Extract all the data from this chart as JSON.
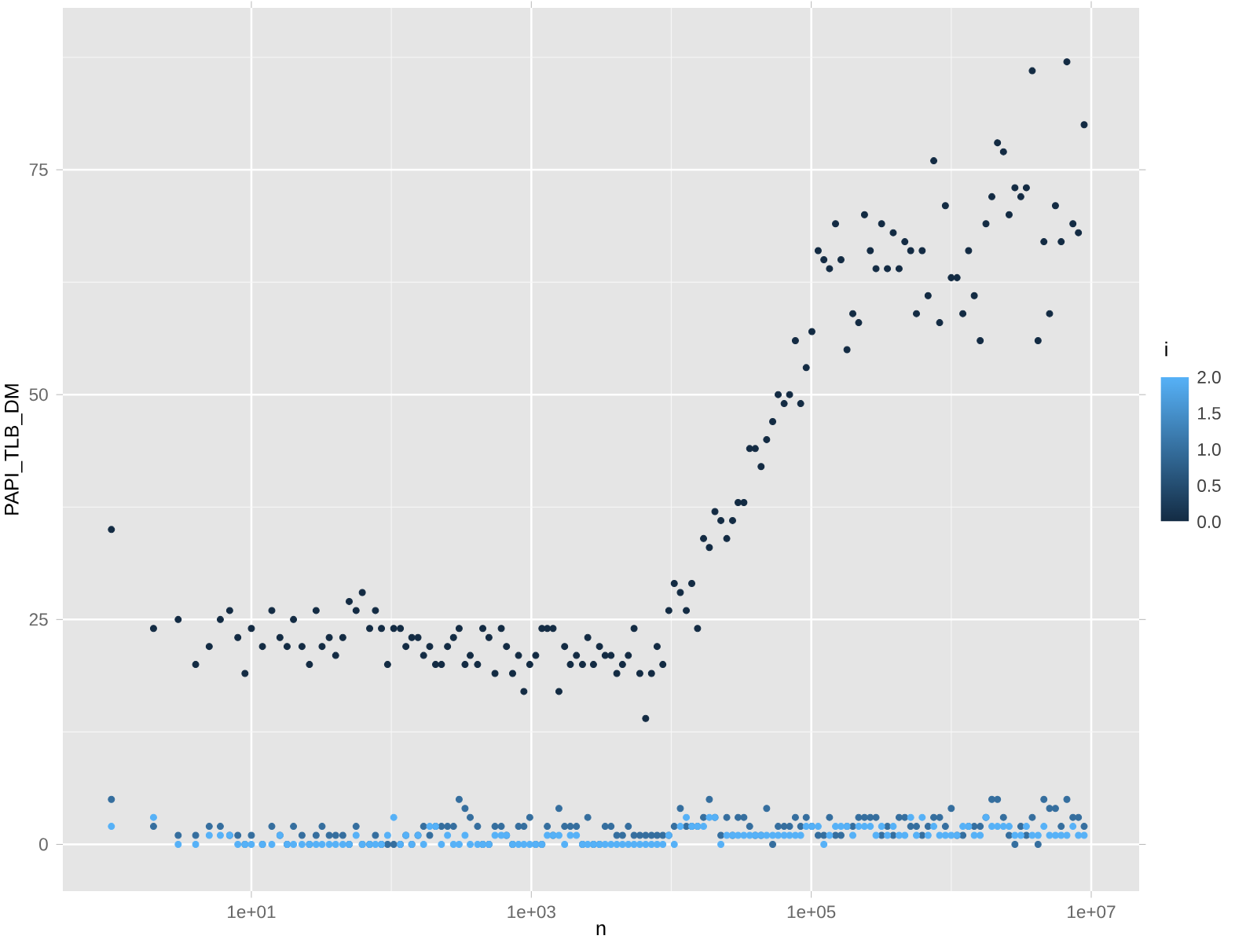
{
  "chart_data": {
    "type": "scatter",
    "xlabel": "n",
    "ylabel": "PAPI_TLB_DM",
    "clabel": "i",
    "log": "x",
    "grid": true,
    "marker": "circle",
    "xlim": [
      0.45,
      22000000
    ],
    "ylim": [
      -5.2,
      93
    ],
    "xticks": [
      {
        "value": 10,
        "label": "1e+01"
      },
      {
        "value": 1000,
        "label": "1e+03"
      },
      {
        "value": 100000,
        "label": "1e+05"
      },
      {
        "value": 10000000,
        "label": "1e+07"
      }
    ],
    "yticks": [
      0,
      25,
      50,
      75
    ],
    "clim": [
      0,
      2
    ],
    "cticks": [
      {
        "value": 0,
        "label": "0.0"
      },
      {
        "value": 0.5,
        "label": "0.5"
      },
      {
        "value": 1,
        "label": "1.0"
      },
      {
        "value": 1.5,
        "label": "1.5"
      },
      {
        "value": 2,
        "label": "2.0"
      }
    ],
    "x": [
      1,
      2,
      3,
      4,
      5,
      6,
      7,
      8,
      9,
      10,
      12,
      14,
      16,
      18,
      20,
      23,
      26,
      29,
      32,
      36,
      40,
      45,
      50,
      56,
      62,
      70,
      77,
      85,
      94,
      104,
      116,
      127,
      140,
      155,
      170,
      188,
      207,
      228,
      252,
      278,
      305,
      336,
      366,
      413,
      450,
      498,
      550,
      610,
      665,
      735,
      810,
      885,
      975,
      1075,
      1190,
      1300,
      1430,
      1575,
      1730,
      1900,
      2100,
      2320,
      2530,
      2780,
      3070,
      3370,
      3710,
      4080,
      4480,
      4930,
      5420,
      5960,
      6560,
      7220,
      7920,
      8700,
      9600,
      10500,
      11600,
      12800,
      14000,
      15400,
      17000,
      18700,
      20500,
      22600,
      24900,
      27400,
      30000,
      33000,
      36300,
      39800,
      43800,
      48000,
      53000,
      58000,
      64000,
      70000,
      77000,
      84000,
      92000,
      101000,
      112000,
      123000,
      135000,
      149000,
      163000,
      180000,
      198000,
      218000,
      240000,
      264000,
      290000,
      318000,
      350000,
      385000,
      424000,
      466000,
      513000,
      564000,
      620000,
      683000,
      750000,
      826000,
      908000,
      1000000,
      1100000,
      1210000,
      1330000,
      1460000,
      1610000,
      1770000,
      1950000,
      2140000,
      2360000,
      2590000,
      2850000,
      3140000,
      3440000,
      3790000,
      4170000,
      4590000,
      5040000,
      5550000,
      6100000,
      6700000,
      7400000,
      8100000,
      8900000
    ],
    "series": [
      {
        "values": [
          35,
          24,
          25,
          20,
          22,
          25,
          26,
          23,
          19,
          24,
          22,
          26,
          23,
          22,
          25,
          22,
          20,
          26,
          22,
          23,
          21,
          23,
          27,
          26,
          28,
          24,
          26,
          24,
          20,
          24,
          24,
          22,
          23,
          23,
          21,
          22,
          20,
          20,
          22,
          23,
          24,
          20,
          21,
          20,
          24,
          23,
          19,
          24,
          22,
          19,
          21,
          17,
          20,
          21,
          24,
          24,
          24,
          17,
          22,
          20,
          21,
          20,
          23,
          20,
          22,
          21,
          21,
          19,
          20,
          21,
          24,
          19,
          14,
          19,
          22,
          20,
          26,
          29,
          28,
          26,
          29,
          24,
          34,
          33,
          37,
          36,
          34,
          36,
          38,
          38,
          44,
          44,
          42,
          45,
          47,
          50,
          49,
          50,
          56,
          49,
          53,
          57,
          66,
          65,
          64,
          69,
          65,
          55,
          59,
          58,
          70,
          66,
          64,
          69,
          64,
          68,
          64,
          67,
          66,
          59,
          66,
          61,
          76,
          58,
          71,
          63,
          63,
          59,
          66,
          61,
          56,
          69,
          72,
          78,
          77,
          70,
          73,
          72,
          73,
          86,
          56,
          67,
          59,
          71,
          67,
          87,
          69,
          68,
          80
        ],
        "cvalues": [
          0,
          0,
          0,
          0,
          0,
          0,
          0,
          0,
          0,
          0,
          0,
          0,
          0,
          0,
          0,
          0,
          0,
          0,
          0,
          0,
          0,
          0,
          0,
          0,
          0,
          0,
          0,
          0,
          0,
          0,
          0,
          0,
          0,
          0,
          0,
          0,
          0,
          0,
          0,
          0,
          0,
          0,
          0,
          0,
          0,
          0,
          0,
          0,
          0,
          0,
          0,
          0,
          0,
          0,
          0,
          0,
          0,
          0,
          0,
          0,
          0,
          0,
          0,
          0,
          0,
          0,
          0,
          0,
          0,
          0,
          0,
          0,
          0,
          0,
          0,
          0,
          0,
          0,
          0,
          0,
          0,
          0,
          0,
          0,
          0,
          0,
          0,
          0,
          0,
          0,
          0,
          0,
          0,
          0,
          0,
          0,
          0,
          0,
          0,
          0,
          0,
          0,
          0,
          0,
          0,
          0,
          0,
          0,
          0,
          0,
          0,
          0,
          0,
          0,
          0,
          0,
          0,
          0,
          0,
          0,
          0,
          0,
          0,
          0,
          0,
          0,
          0,
          0,
          0,
          0,
          0,
          0,
          0,
          0,
          0,
          0,
          0,
          0,
          0,
          0,
          0,
          0,
          0,
          0,
          0,
          0,
          0,
          0,
          0
        ]
      },
      {
        "values": [
          5,
          2,
          1,
          1,
          2,
          2,
          1,
          1,
          0,
          1,
          0,
          2,
          1,
          0,
          2,
          1,
          0,
          1,
          2,
          1,
          1,
          1,
          0,
          2,
          0,
          0,
          1,
          0,
          0,
          0,
          0,
          1,
          0,
          1,
          2,
          1,
          2,
          2,
          2,
          2,
          5,
          4,
          3,
          2,
          0,
          0,
          2,
          2,
          1,
          0,
          2,
          2,
          3,
          0,
          0,
          2,
          1,
          4,
          2,
          2,
          2,
          0,
          3,
          0,
          0,
          2,
          2,
          1,
          1,
          2,
          1,
          1,
          1,
          1,
          1,
          1,
          1,
          2,
          4,
          2,
          2,
          2,
          3,
          5,
          3,
          1,
          3,
          1,
          3,
          3,
          2,
          1,
          1,
          4,
          0,
          2,
          2,
          2,
          3,
          2,
          3,
          2,
          1,
          1,
          3,
          1,
          1,
          2,
          2,
          3,
          3,
          3,
          3,
          1,
          2,
          1,
          3,
          3,
          2,
          2,
          1,
          2,
          3,
          3,
          2,
          4,
          1,
          1,
          2,
          2,
          2,
          3,
          5,
          5,
          3,
          1,
          0,
          2,
          1,
          3,
          0,
          5,
          4,
          4,
          2,
          5,
          3,
          3,
          2
        ],
        "cvalues": [
          1,
          1,
          1,
          1,
          1,
          1,
          1,
          1,
          1,
          1,
          1,
          1,
          1,
          1,
          1,
          1,
          1,
          1,
          1,
          1,
          1,
          1,
          1,
          1,
          1,
          1,
          1,
          1,
          1,
          1,
          1,
          1,
          1,
          1,
          1,
          1,
          1,
          1,
          1,
          1,
          1,
          1,
          1,
          1,
          1,
          1,
          1,
          1,
          1,
          1,
          1,
          1,
          1,
          1,
          1,
          1,
          1,
          1,
          1,
          1,
          1,
          1,
          1,
          1,
          1,
          1,
          1,
          1,
          1,
          1,
          1,
          1,
          1,
          1,
          1,
          1,
          1,
          1,
          1,
          1,
          1,
          1,
          1,
          1,
          1,
          1,
          1,
          1,
          1,
          1,
          1,
          1,
          1,
          1,
          1,
          1,
          1,
          1,
          1,
          1,
          1,
          1,
          1,
          1,
          1,
          1,
          1,
          1,
          1,
          1,
          1,
          1,
          1,
          1,
          1,
          1,
          1,
          1,
          1,
          1,
          1,
          1,
          1,
          1,
          1,
          1,
          1,
          1,
          1,
          1,
          1,
          1,
          1,
          1,
          1,
          1,
          1,
          1,
          1,
          1,
          1,
          1,
          1,
          1,
          1,
          1,
          1,
          1,
          1
        ]
      },
      {
        "values": [
          2,
          3,
          0,
          0,
          1,
          1,
          1,
          0,
          0,
          0,
          0,
          0,
          1,
          0,
          0,
          0,
          0,
          0,
          0,
          0,
          0,
          0,
          0,
          1,
          0,
          0,
          0,
          0,
          1,
          3,
          0,
          1,
          0,
          1,
          0,
          2,
          2,
          0,
          1,
          0,
          0,
          1,
          0,
          0,
          0,
          0,
          1,
          1,
          1,
          0,
          0,
          0,
          0,
          0,
          0,
          1,
          1,
          1,
          0,
          1,
          1,
          0,
          0,
          0,
          0,
          0,
          0,
          0,
          0,
          0,
          0,
          0,
          0,
          0,
          0,
          0,
          1,
          0,
          2,
          3,
          2,
          2,
          2,
          3,
          3,
          0,
          1,
          1,
          1,
          1,
          1,
          1,
          1,
          1,
          1,
          1,
          1,
          1,
          1,
          1,
          2,
          2,
          2,
          0,
          1,
          2,
          2,
          2,
          1,
          2,
          2,
          2,
          1,
          2,
          1,
          2,
          1,
          1,
          3,
          1,
          3,
          1,
          2,
          1,
          1,
          1,
          1,
          2,
          2,
          1,
          1,
          3,
          2,
          2,
          2,
          2,
          1,
          1,
          2,
          1,
          1,
          2,
          1,
          1,
          1,
          1,
          2,
          1,
          1
        ],
        "cvalues": [
          2,
          2,
          2,
          2,
          2,
          2,
          2,
          2,
          2,
          2,
          2,
          2,
          2,
          2,
          2,
          2,
          2,
          2,
          2,
          2,
          2,
          2,
          2,
          2,
          2,
          2,
          2,
          2,
          2,
          2,
          2,
          2,
          2,
          2,
          2,
          2,
          2,
          2,
          2,
          2,
          2,
          2,
          2,
          2,
          2,
          2,
          2,
          2,
          2,
          2,
          2,
          2,
          2,
          2,
          2,
          2,
          2,
          2,
          2,
          2,
          2,
          2,
          2,
          2,
          2,
          2,
          2,
          2,
          2,
          2,
          2,
          2,
          2,
          2,
          2,
          2,
          2,
          2,
          2,
          2,
          2,
          2,
          2,
          2,
          2,
          2,
          2,
          2,
          2,
          2,
          2,
          2,
          2,
          2,
          2,
          2,
          2,
          2,
          2,
          2,
          2,
          2,
          2,
          2,
          2,
          2,
          2,
          2,
          2,
          2,
          2,
          2,
          2,
          2,
          2,
          2,
          2,
          2,
          2,
          2,
          2,
          2,
          2,
          2,
          2,
          2,
          2,
          2,
          2,
          2,
          2,
          2,
          2,
          2,
          2,
          2,
          2,
          2,
          2,
          2,
          2,
          2,
          2,
          2,
          2,
          2,
          2,
          2,
          2
        ]
      }
    ]
  }
}
